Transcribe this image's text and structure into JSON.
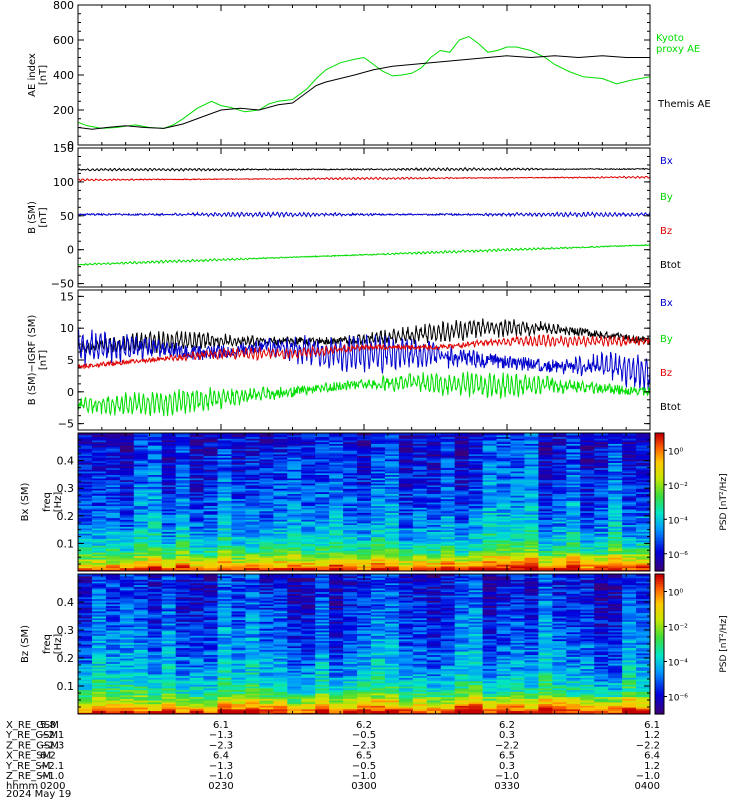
{
  "colors": {
    "black": "#000000",
    "red": "#e00000",
    "green": "#00dd00",
    "blue": "#0000cc"
  },
  "chart_data": [
    {
      "type": "line",
      "ylabel": "AE index",
      "yunit": "[nT]",
      "ylim": [
        0,
        800
      ],
      "yticks": [
        "0",
        "200",
        "400",
        "600",
        "800"
      ],
      "yticks_values": [
        0,
        200,
        400,
        600,
        800
      ],
      "legend": [
        {
          "lines": [
            "Kyoto",
            "proxy AE"
          ],
          "color": "#00dd00"
        },
        {
          "lines": [
            "Themis AE"
          ],
          "color": "#000000"
        }
      ],
      "series": [
        {
          "name": "Kyoto proxy AE",
          "color": "#00dd00",
          "x": [
            0,
            2,
            5,
            8,
            12,
            15,
            18,
            20,
            22,
            25,
            28,
            30,
            32,
            35,
            38,
            40,
            42,
            45,
            48,
            50,
            52,
            55,
            58,
            60,
            62,
            64,
            66,
            68,
            70,
            72,
            74,
            76,
            78,
            80,
            82,
            84,
            86,
            88,
            90,
            92,
            95,
            98,
            100,
            103,
            106,
            110,
            113,
            116,
            120
          ],
          "y": [
            130,
            110,
            95,
            100,
            115,
            100,
            95,
            115,
            150,
            210,
            250,
            225,
            215,
            190,
            200,
            235,
            250,
            260,
            320,
            380,
            430,
            470,
            490,
            500,
            460,
            420,
            395,
            400,
            410,
            440,
            500,
            540,
            530,
            600,
            620,
            580,
            530,
            540,
            560,
            560,
            540,
            500,
            460,
            420,
            390,
            380,
            350,
            370,
            390
          ]
        },
        {
          "name": "Themis AE",
          "color": "#000000",
          "x": [
            0,
            3,
            6,
            10,
            14,
            18,
            22,
            26,
            30,
            34,
            38,
            42,
            45,
            48,
            50,
            52,
            55,
            58,
            62,
            66,
            70,
            74,
            78,
            82,
            86,
            90,
            95,
            100,
            105,
            110,
            115,
            120
          ],
          "y": [
            100,
            90,
            100,
            110,
            100,
            95,
            120,
            160,
            200,
            210,
            200,
            230,
            240,
            300,
            340,
            360,
            380,
            400,
            430,
            450,
            460,
            470,
            480,
            490,
            500,
            510,
            500,
            510,
            500,
            510,
            500,
            500
          ]
        }
      ]
    },
    {
      "type": "line",
      "ylabel": "B (SM)",
      "yunit": "[nT]",
      "ylim": [
        -55,
        150
      ],
      "yticks": [
        "−50",
        "0",
        "50",
        "100",
        "150"
      ],
      "yticks_values": [
        -50,
        0,
        50,
        100,
        150
      ],
      "legend": [
        {
          "lines": [
            "Bx"
          ],
          "color": "#0000cc"
        },
        {
          "lines": [
            "By"
          ],
          "color": "#00dd00"
        },
        {
          "lines": [
            "Bz"
          ],
          "color": "#e00000"
        },
        {
          "lines": [
            "Btot"
          ],
          "color": "#000000"
        }
      ],
      "series": [
        {
          "name": "Btot",
          "color": "#000000",
          "x": [
            0,
            120
          ],
          "y": [
            118,
            119
          ],
          "noise": 1.5
        },
        {
          "name": "Bz",
          "color": "#e00000",
          "x": [
            0,
            120
          ],
          "y": [
            103,
            107
          ],
          "noise": 1.2
        },
        {
          "name": "Bx",
          "color": "#0000cc",
          "x": [
            0,
            120
          ],
          "y": [
            52,
            52
          ],
          "noise": 2.5
        },
        {
          "name": "By",
          "color": "#00dd00",
          "x": [
            0,
            120
          ],
          "y": [
            -22,
            7
          ],
          "noise": 1.5
        }
      ]
    },
    {
      "type": "line",
      "ylabel": "B (SM)−IGRF (SM)",
      "yunit": "[nT]",
      "ylim": [
        -6,
        16
      ],
      "yticks": [
        "−5",
        "0",
        "5",
        "10",
        "15"
      ],
      "yticks_values": [
        -5,
        0,
        5,
        10,
        15
      ],
      "legend": [
        {
          "lines": [
            "Bx"
          ],
          "color": "#0000cc"
        },
        {
          "lines": [
            "By"
          ],
          "color": "#00dd00"
        },
        {
          "lines": [
            "Bz"
          ],
          "color": "#e00000"
        },
        {
          "lines": [
            "Btot"
          ],
          "color": "#000000"
        }
      ],
      "series": [
        {
          "name": "Btot",
          "color": "#000000",
          "x": [
            0,
            20,
            40,
            55,
            70,
            85,
            100,
            110,
            120
          ],
          "y": [
            7,
            8,
            8,
            8,
            9,
            10,
            10,
            9,
            8
          ],
          "noise": 1.2
        },
        {
          "name": "Bx",
          "color": "#0000cc",
          "x": [
            0,
            15,
            25,
            40,
            55,
            70,
            85,
            100,
            110,
            120
          ],
          "y": [
            7,
            7,
            6,
            7,
            6,
            6,
            5,
            4,
            4,
            3
          ],
          "noise": 2.2
        },
        {
          "name": "Bz",
          "color": "#e00000",
          "x": [
            0,
            15,
            30,
            45,
            60,
            75,
            90,
            105,
            120
          ],
          "y": [
            4,
            5,
            6,
            6,
            7,
            7,
            8,
            8,
            8
          ],
          "noise": 0.7
        },
        {
          "name": "By",
          "color": "#00dd00",
          "x": [
            0,
            15,
            30,
            45,
            55,
            70,
            85,
            100,
            110,
            120
          ],
          "y": [
            -2,
            -2,
            -1,
            0,
            1,
            1.5,
            1,
            1,
            0.5,
            0
          ],
          "noise": 1.5
        }
      ]
    },
    {
      "type": "heatmap",
      "ylabel": "Bx (SM)",
      "ylabel2": "freq",
      "yunit": "[Hz]",
      "ylim": [
        0,
        0.5
      ],
      "yticks": [
        "0.1",
        "0.2",
        "0.3",
        "0.4"
      ],
      "yticks_values": [
        0.1,
        0.2,
        0.3,
        0.4
      ],
      "colorbar_label": "PSD [nT²/Hz]",
      "colorbar_ticks": [
        "10⁰",
        "10⁻²",
        "10⁻⁴",
        "10⁻⁶"
      ],
      "colorbar_values": [
        0,
        -2,
        -4,
        -6
      ],
      "colorbar_range": [
        -7,
        1
      ],
      "cells_x": 41,
      "cells_y": 80,
      "seed": 11
    },
    {
      "type": "heatmap",
      "ylabel": "Bz (SM)",
      "ylabel2": "freq",
      "yunit": "[Hz]",
      "ylim": [
        0,
        0.5
      ],
      "yticks": [
        "0.1",
        "0.2",
        "0.3",
        "0.4"
      ],
      "yticks_values": [
        0.1,
        0.2,
        0.3,
        0.4
      ],
      "colorbar_label": "PSD [nT²/Hz]",
      "colorbar_ticks": [
        "10⁰",
        "10⁻²",
        "10⁻⁴",
        "10⁻⁶"
      ],
      "colorbar_values": [
        0,
        -2,
        -4,
        -6
      ],
      "colorbar_range": [
        -7,
        1
      ],
      "cells_x": 41,
      "cells_y": 80,
      "seed": 29
    }
  ],
  "xaxis": {
    "xlim": [
      0,
      120
    ],
    "ticks_values": [
      0,
      30,
      60,
      90,
      120
    ],
    "rows": [
      {
        "label": "X_RE_GSM",
        "values": [
          "5.8",
          "6.1",
          "6.2",
          "6.2",
          "6.1"
        ]
      },
      {
        "label": "Y_RE_GSM",
        "values": [
          "−2.1",
          "−1.3",
          "−0.5",
          "0.3",
          "1.2"
        ]
      },
      {
        "label": "Z_RE_GSM",
        "values": [
          "−2.3",
          "−2.3",
          "−2.3",
          "−2.2",
          "−2.2"
        ]
      },
      {
        "label": "X_RE_SM",
        "values": [
          "6.2",
          "6.4",
          "6.5",
          "6.5",
          "6.4"
        ]
      },
      {
        "label": "Y_RE_SM",
        "values": [
          "−2.1",
          "−1.3",
          "−0.5",
          "0.3",
          "1.2"
        ]
      },
      {
        "label": "Z_RE_SM",
        "values": [
          "−1.0",
          "−1.0",
          "−1.0",
          "−1.0",
          "−1.0"
        ]
      },
      {
        "label": "hhmm",
        "values": [
          "0200",
          "0230",
          "0300",
          "0330",
          "0400"
        ]
      }
    ],
    "date": "2024 May 19"
  }
}
